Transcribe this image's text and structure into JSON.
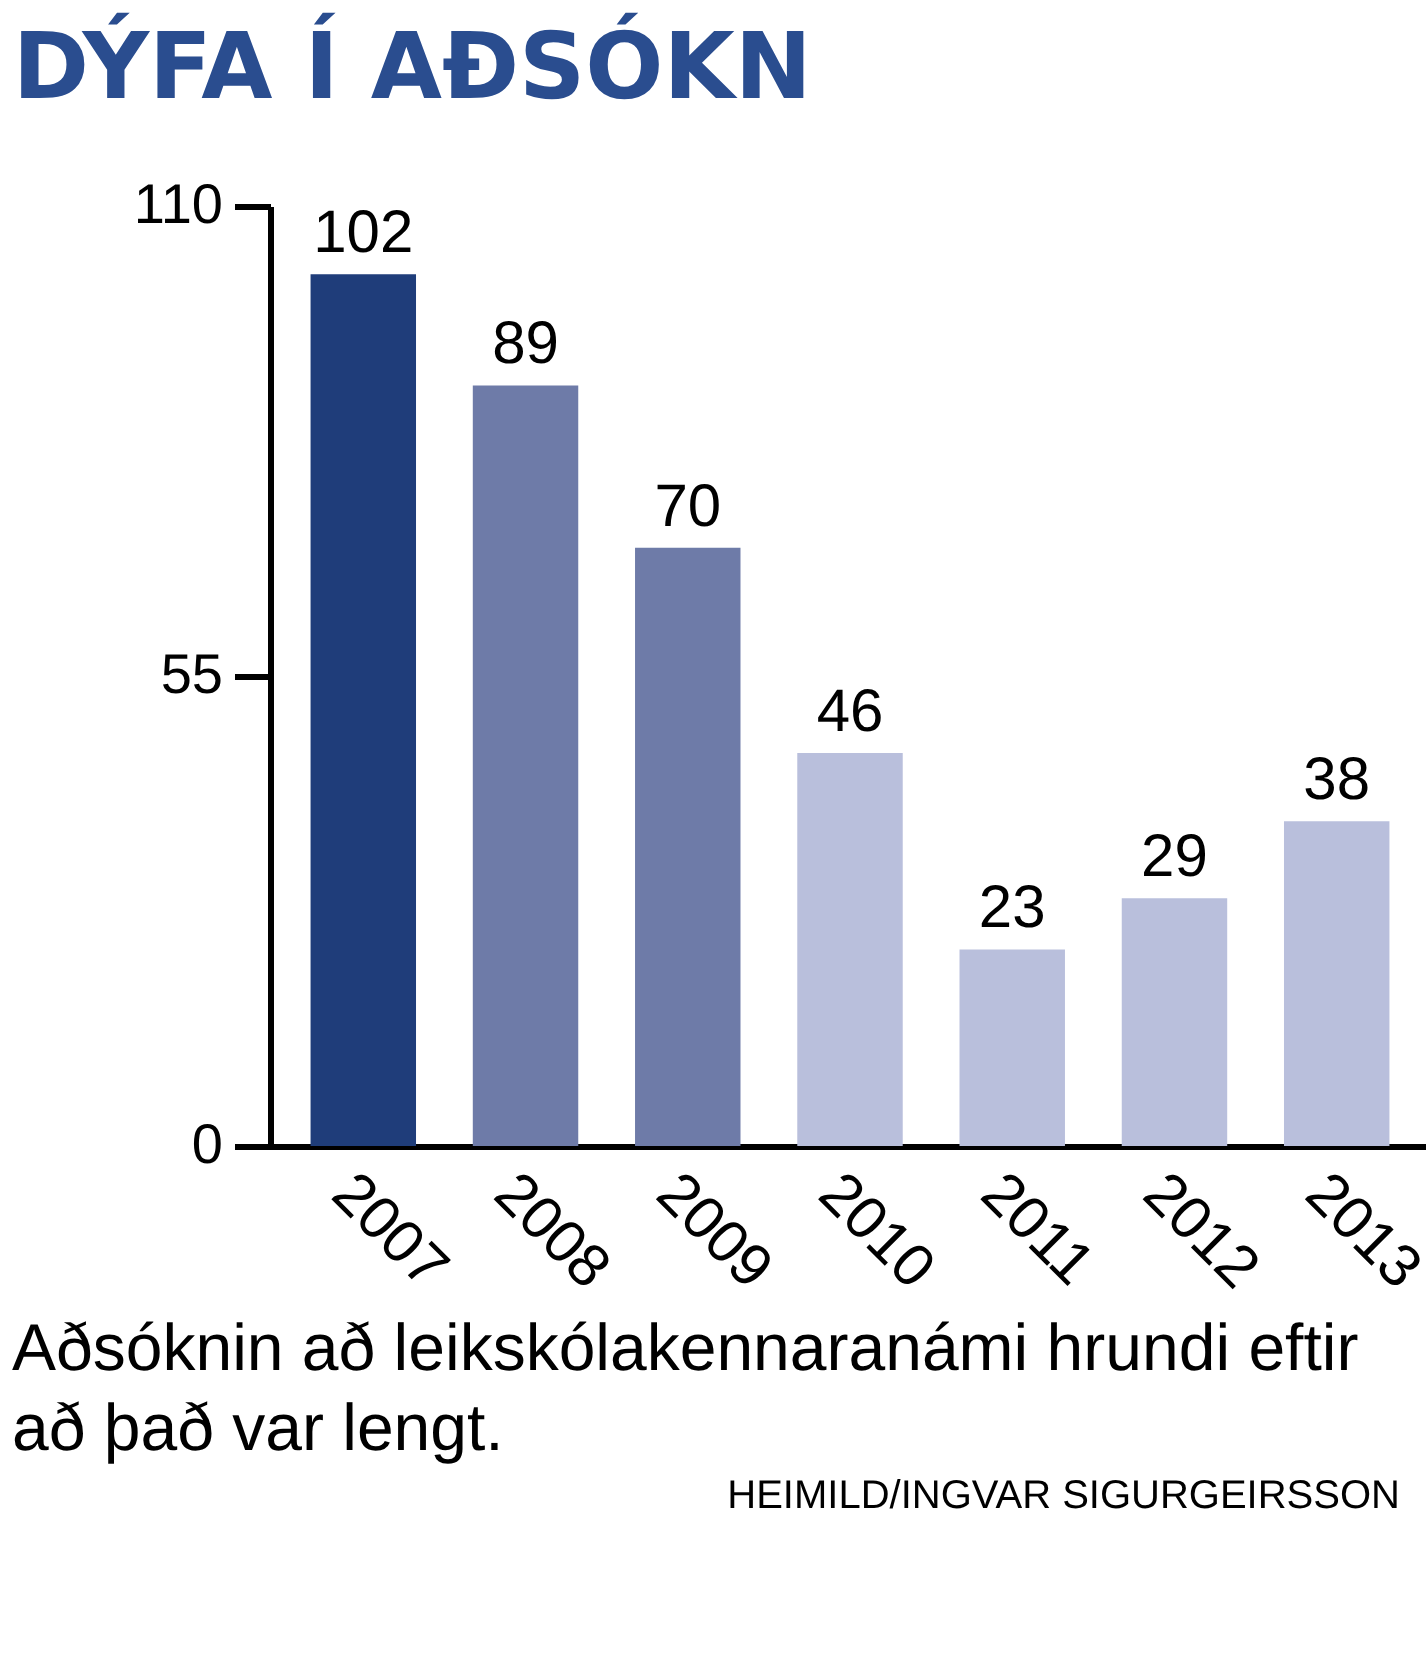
{
  "chart_data": {
    "type": "bar",
    "title": "DÝFA Í AÐSÓKN",
    "categories": [
      "2007",
      "2008",
      "2009",
      "2010",
      "2011",
      "2012",
      "2013"
    ],
    "values": [
      102,
      89,
      70,
      46,
      23,
      29,
      38
    ],
    "colors": [
      "#1f3d7a",
      "#6e7ba8",
      "#6e7ba8",
      "#b9bfdc",
      "#b9bfdc",
      "#b9bfdc",
      "#b9bfdc"
    ],
    "ylim": [
      0,
      110
    ],
    "yticks": [
      0,
      55,
      110
    ],
    "grid": false,
    "data_labels": true,
    "annotations": [
      "Aðsóknin að leikskólakennaranámi hrundi eftir að það var lengt.",
      "HEIMILD/INGVAR SIGURGEIRSSON"
    ]
  }
}
